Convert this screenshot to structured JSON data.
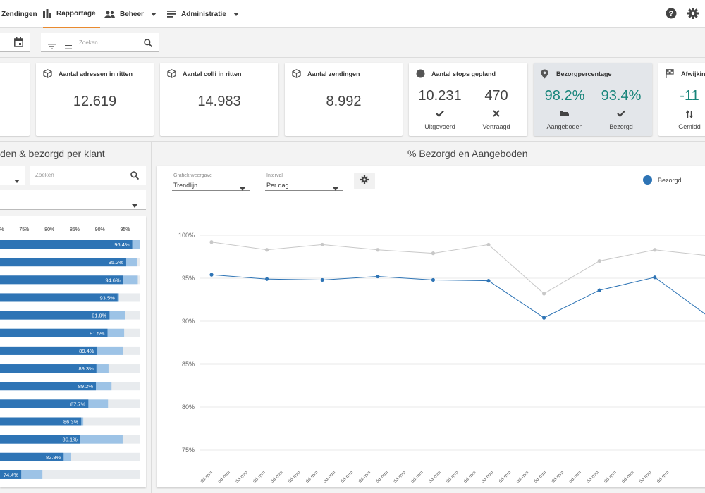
{
  "nav": {
    "zendingen": "Zendingen",
    "rapportage": "Rapportage",
    "beheer": "Beheer",
    "administratie": "Administratie"
  },
  "filters": {
    "search_placeholder": "Zoeken"
  },
  "kpis": {
    "adressen": {
      "title": "Aantal adressen in ritten",
      "value": "12.619"
    },
    "colli": {
      "title": "Aantal colli in ritten",
      "value": "14.983"
    },
    "zendingen": {
      "title": "Aantal zendingen",
      "value": "8.992"
    },
    "stops": {
      "title": "Aantal stops gepland",
      "v1": "10.231",
      "l1": "Uitgevoerd",
      "v2": "470",
      "l2": "Vertraagd"
    },
    "bezorg": {
      "title": "Bezorgpercentage",
      "v1": "98.2%",
      "l1": "Aangeboden",
      "v2": "93.4%",
      "l2": "Bezorgd"
    },
    "afwijking": {
      "title": "Afwijking",
      "value": "-11",
      "label": "Gemidd"
    }
  },
  "left": {
    "title": "den & bezorgd per klant",
    "search_placeholder": "Zoeken",
    "axis_ticks": [
      "70%",
      "75%",
      "80%",
      "85%",
      "90%",
      "95%"
    ],
    "colors": {
      "bezorgd": "#2e74b5",
      "aangeboden": "#9dc3e6",
      "track": "#e8ebee"
    }
  },
  "chart": {
    "title": "% Bezorgd en Aangeboden",
    "weergave_label": "Grafiek weergave",
    "weergave_value": "Trendlijn",
    "interval_label": "Interval",
    "interval_value": "Per dag",
    "legend_bezorgd": "Bezorgd"
  },
  "chart_data": [
    {
      "type": "bar",
      "categories": [
        "",
        "",
        "",
        "",
        "",
        "",
        "",
        "",
        "",
        "",
        "",
        "",
        "",
        ""
      ],
      "series": [
        {
          "values": [
            96.4,
            95.2,
            94.6,
            93.5,
            91.9,
            91.5,
            89.4,
            89.3,
            89.2,
            87.7,
            86.3,
            86.1,
            82.8,
            74.4
          ]
        },
        {
          "values": [
            98.0,
            97.3,
            97.5,
            93.8,
            95.0,
            94.8,
            94.6,
            91.7,
            92.3,
            91.6,
            86.7,
            94.5,
            84.3,
            78.6
          ]
        }
      ],
      "labels": [
        "96.4%",
        "95.2%",
        "94.6%",
        "93.5%",
        "91.9%",
        "91.5%",
        "89.4%",
        "89.3%",
        "89.2%",
        "87.7%",
        "86.3%",
        "86.1%",
        "82.8%",
        "74.4%"
      ],
      "xlim": [
        66,
        98
      ],
      "xticks": [
        "70%",
        "75%",
        "80%",
        "85%",
        "90%",
        "95%"
      ]
    },
    {
      "type": "line",
      "title": "% Bezorgd en Aangeboden",
      "x": [
        "dd-mm",
        "dd-mm",
        "dd-mm",
        "dd-mm",
        "dd-mm",
        "dd-mm",
        "dd-mm",
        "dd-mm",
        "dd-mm",
        "dd-mm",
        "dd-mm",
        "dd-mm",
        "dd-mm",
        "dd-mm",
        "dd-mm",
        "dd-mm",
        "dd-mm",
        "dd-mm",
        "dd-mm",
        "dd-mm",
        "dd-mm",
        "dd-mm",
        "dd-mm",
        "dd-mm",
        "dd-mm",
        "dd-mm",
        "dd-mm"
      ],
      "series": [
        {
          "name": "Bezorgd",
          "color": "#2e74b5",
          "points": [
            [
              0,
              95.4
            ],
            [
              1,
              94.9
            ],
            [
              2,
              94.8
            ],
            [
              3,
              95.2
            ],
            [
              4,
              94.8
            ],
            [
              5,
              94.7
            ],
            [
              6,
              90.4
            ],
            [
              7,
              93.6
            ],
            [
              8,
              95.1
            ],
            [
              9,
              90.4
            ]
          ]
        },
        {
          "color": "#c8c8c8",
          "points": [
            [
              0,
              99.2
            ],
            [
              1,
              98.3
            ],
            [
              2,
              98.9
            ],
            [
              3,
              98.3
            ],
            [
              4,
              97.9
            ],
            [
              5,
              98.9
            ],
            [
              6,
              93.2
            ],
            [
              7,
              97.0
            ],
            [
              8,
              98.3
            ],
            [
              9,
              97.6
            ]
          ]
        }
      ],
      "yticks": [
        "100%",
        "95%",
        "90%",
        "85%",
        "80%",
        "75%"
      ],
      "ylim": [
        75,
        100
      ],
      "grid": true,
      "legend": "top-right"
    }
  ]
}
